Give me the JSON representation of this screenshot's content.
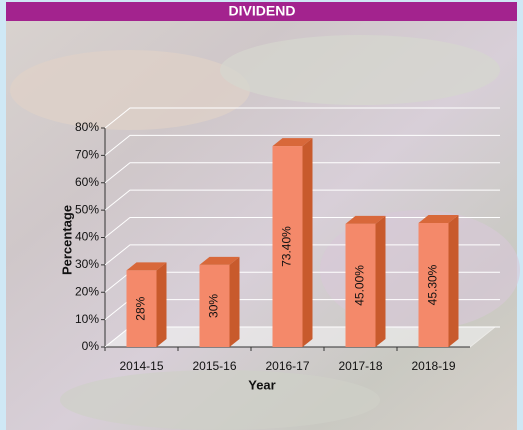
{
  "chart_data": {
    "type": "bar3d",
    "title": "DIVIDEND",
    "categories": [
      "2014-15",
      "2015-16",
      "2016-17",
      "2017-18",
      "2018-19"
    ],
    "values": [
      28,
      30,
      73.4,
      45,
      45.3
    ],
    "value_labels": [
      "28%",
      "30%",
      "73.40%",
      "45.00%",
      "45.30%"
    ],
    "color": "#f4896a",
    "x_label": "Year",
    "y_label": "Percentage",
    "ylim": [
      0,
      80
    ],
    "yticks": [
      {
        "value": 0,
        "label": "0%"
      },
      {
        "value": 10,
        "label": "10%"
      },
      {
        "value": 20,
        "label": "20%"
      },
      {
        "value": 30,
        "label": "30%"
      },
      {
        "value": 40,
        "label": "40%"
      },
      {
        "value": 50,
        "label": "50%"
      },
      {
        "value": 60,
        "label": "60%"
      },
      {
        "value": 70,
        "label": "70%"
      },
      {
        "value": 80,
        "label": "80%"
      }
    ],
    "grid": true
  }
}
